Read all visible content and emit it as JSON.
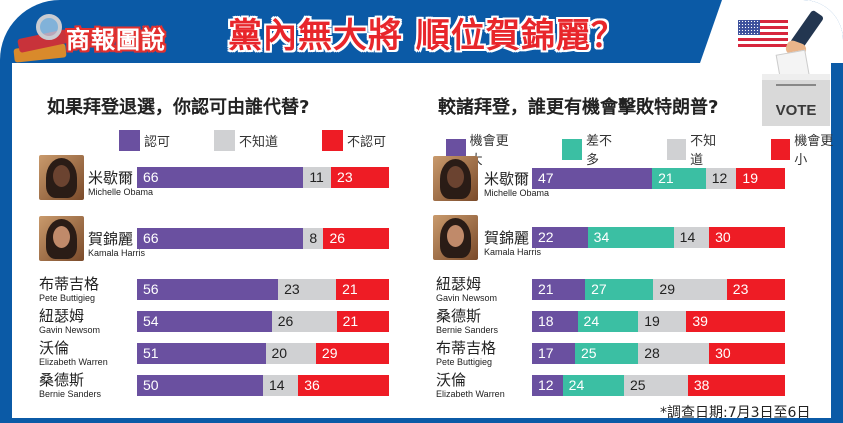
{
  "header": {
    "logo_text": "商報圖說",
    "title": "黨內無大將 順位賀錦麗？",
    "vote_label": "VOTE"
  },
  "colors": {
    "frame_blue": "#0b5aa6",
    "purple": "#6a50a0",
    "teal": "#3bbfa3",
    "gray": "#d0d1d3",
    "red": "#ee1c25",
    "title_red": "#e8262b"
  },
  "left_panel": {
    "title": "如果拜登退選，你認可由誰代替?",
    "legend": [
      {
        "label": "認可",
        "color": "#6a50a0"
      },
      {
        "label": "不知道",
        "color": "#d0d1d3"
      },
      {
        "label": "不認可",
        "color": "#ee1c25"
      }
    ]
  },
  "right_panel": {
    "title": "較諸拜登，誰更有機會擊敗特朗普?",
    "legend": [
      {
        "label": "機會更大",
        "color": "#6a50a0"
      },
      {
        "label": "差不多",
        "color": "#3bbfa3"
      },
      {
        "label": "不知道",
        "color": "#d0d1d3"
      },
      {
        "label": "機會更小",
        "color": "#ee1c25"
      }
    ]
  },
  "footnote": "*調查日期:7月3日至6日",
  "chart_data": [
    {
      "type": "bar",
      "orientation": "horizontal",
      "stacked": true,
      "title": "如果拜登退選，你認可由誰代替?",
      "categories": [
        "米歇爾 Michelle Obama",
        "賀錦麗 Kamala Harris",
        "布蒂吉格 Pete Buttigieg",
        "紐瑟姆 Gavin Newsom",
        "沃倫 Elizabeth Warren",
        "桑德斯 Bernie Sanders"
      ],
      "rows": [
        {
          "zh": "米歇爾",
          "en": "Michelle Obama",
          "photo": true,
          "values": [
            66,
            11,
            23
          ]
        },
        {
          "zh": "賀錦麗",
          "en": "Kamala Harris",
          "photo": true,
          "values": [
            66,
            8,
            26
          ]
        },
        {
          "zh": "布蒂吉格",
          "en": "Pete Buttigieg",
          "photo": false,
          "values": [
            56,
            23,
            21
          ]
        },
        {
          "zh": "紐瑟姆",
          "en": "Gavin Newsom",
          "photo": false,
          "values": [
            54,
            26,
            21
          ]
        },
        {
          "zh": "沃倫",
          "en": "Elizabeth Warren",
          "photo": false,
          "values": [
            51,
            20,
            29
          ]
        },
        {
          "zh": "桑德斯",
          "en": "Bernie Sanders",
          "photo": false,
          "values": [
            50,
            14,
            36
          ]
        }
      ],
      "series": [
        {
          "name": "認可",
          "values": [
            66,
            66,
            56,
            54,
            51,
            50
          ]
        },
        {
          "name": "不知道",
          "values": [
            11,
            8,
            23,
            26,
            20,
            14
          ]
        },
        {
          "name": "不認可",
          "values": [
            23,
            26,
            21,
            21,
            29,
            36
          ]
        }
      ],
      "xlim": [
        0,
        100
      ],
      "legend_position": "top"
    },
    {
      "type": "bar",
      "orientation": "horizontal",
      "stacked": true,
      "title": "較諸拜登，誰更有機會擊敗特朗普?",
      "categories": [
        "米歇爾 Michelle Obama",
        "賀錦麗 Kamala Harris",
        "紐瑟姆 Gavin Newsom",
        "桑德斯 Bernie Sanders",
        "布蒂吉格 Pete Buttigieg",
        "沃倫 Elizabeth Warren"
      ],
      "rows": [
        {
          "zh": "米歇爾",
          "en": "Michelle Obama",
          "photo": true,
          "values": [
            47,
            21,
            12,
            19
          ]
        },
        {
          "zh": "賀錦麗",
          "en": "Kamala Harris",
          "photo": true,
          "values": [
            22,
            34,
            14,
            30
          ]
        },
        {
          "zh": "紐瑟姆",
          "en": "Gavin Newsom",
          "photo": false,
          "values": [
            21,
            27,
            29,
            23
          ]
        },
        {
          "zh": "桑德斯",
          "en": "Bernie Sanders",
          "photo": false,
          "values": [
            18,
            24,
            19,
            39
          ]
        },
        {
          "zh": "布蒂吉格",
          "en": "Pete Buttigieg",
          "photo": false,
          "values": [
            17,
            25,
            28,
            30
          ]
        },
        {
          "zh": "沃倫",
          "en": "Elizabeth Warren",
          "photo": false,
          "values": [
            12,
            24,
            25,
            38
          ]
        }
      ],
      "series": [
        {
          "name": "機會更大",
          "values": [
            47,
            22,
            21,
            18,
            17,
            12
          ]
        },
        {
          "name": "差不多",
          "values": [
            21,
            34,
            27,
            24,
            25,
            24
          ]
        },
        {
          "name": "不知道",
          "values": [
            12,
            14,
            29,
            19,
            28,
            25
          ]
        },
        {
          "name": "機會更小",
          "values": [
            19,
            30,
            23,
            39,
            30,
            38
          ]
        }
      ],
      "xlim": [
        0,
        100
      ],
      "legend_position": "top"
    }
  ]
}
